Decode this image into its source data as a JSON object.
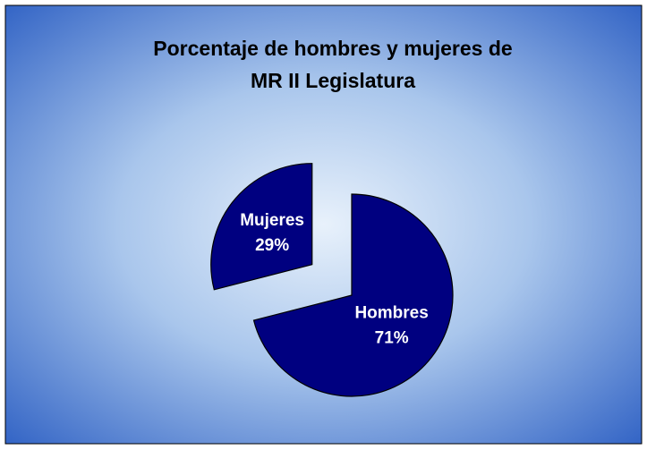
{
  "chart_data": {
    "type": "pie",
    "title": [
      "Porcentaje de hombres y mujeres de",
      "MR II Legislatura"
    ],
    "categories": [
      "Hombres",
      "Mujeres"
    ],
    "values": [
      71,
      29
    ],
    "value_labels": [
      "71%",
      "29%"
    ],
    "colors": [
      "#000080",
      "#000080"
    ],
    "exploded": [
      false,
      true
    ]
  }
}
